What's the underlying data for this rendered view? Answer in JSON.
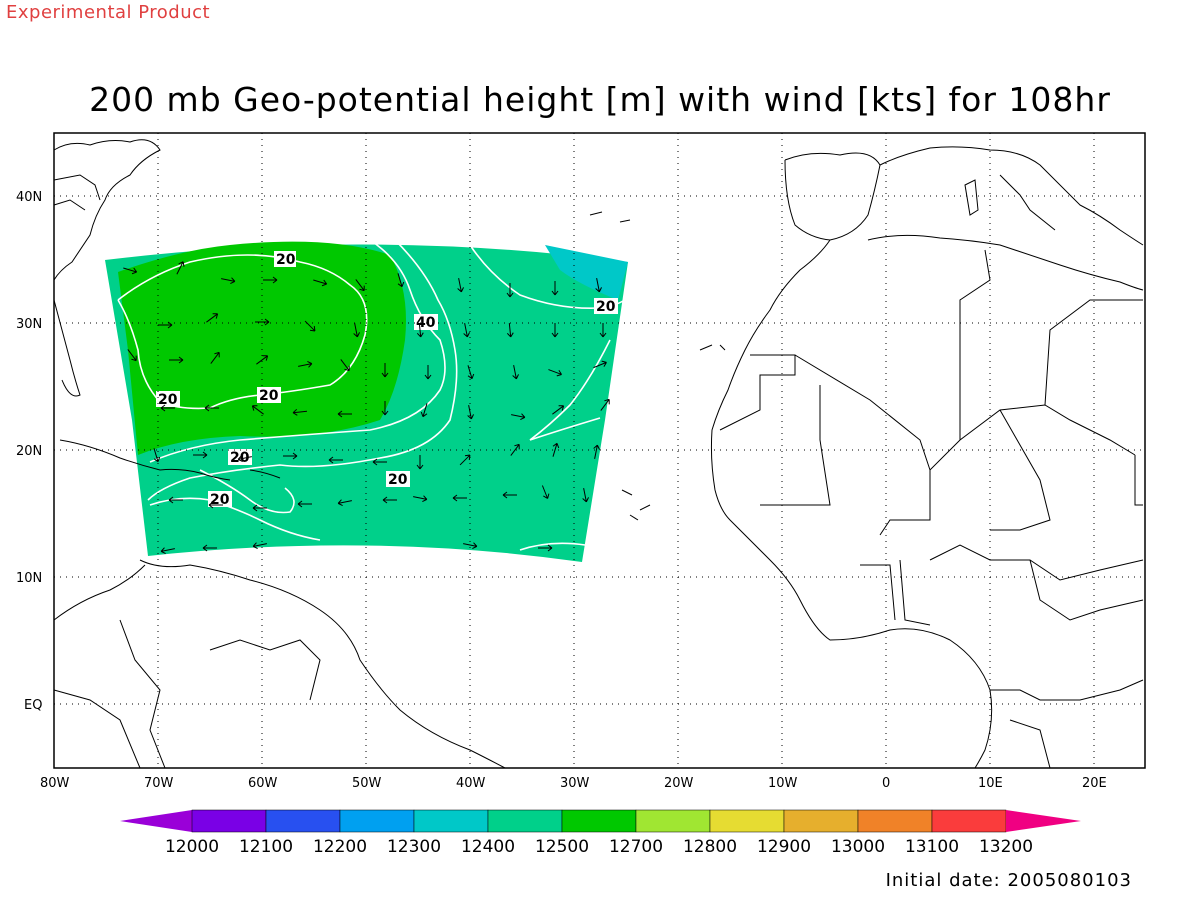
{
  "product_tag": "Experimental Product",
  "title": "200 mb Geo-potential height [m] with wind [kts] for 108hr",
  "initial_date": "Initial date: 2005080103",
  "lon_labels": [
    "80W",
    "70W",
    "60W",
    "50W",
    "40W",
    "30W",
    "20W",
    "10W",
    "0",
    "10E",
    "20E"
  ],
  "lat_labels": [
    "40N",
    "30N",
    "20N",
    "10N",
    "EQ"
  ],
  "colorbar": {
    "levels": [
      "12000",
      "12100",
      "12200",
      "12300",
      "12400",
      "12500",
      "12700",
      "12800",
      "12900",
      "13000",
      "13100",
      "13200"
    ],
    "colors": [
      "#9a00d8",
      "#7a00e6",
      "#2850f0",
      "#00a0f0",
      "#00c8c8",
      "#00d08a",
      "#00c800",
      "#a0e632",
      "#e6dc32",
      "#e6af2d",
      "#f08228",
      "#fa3c3c",
      "#f00082"
    ]
  },
  "contour_labels": [
    {
      "text": "20"
    },
    {
      "text": "40"
    },
    {
      "text": "20"
    },
    {
      "text": "20"
    },
    {
      "text": "20"
    },
    {
      "text": "20"
    },
    {
      "text": "20"
    },
    {
      "text": "20"
    }
  ],
  "fill_colors": {
    "teal": "#00d08a",
    "green": "#00c800",
    "cyan": "#00c8c8"
  }
}
